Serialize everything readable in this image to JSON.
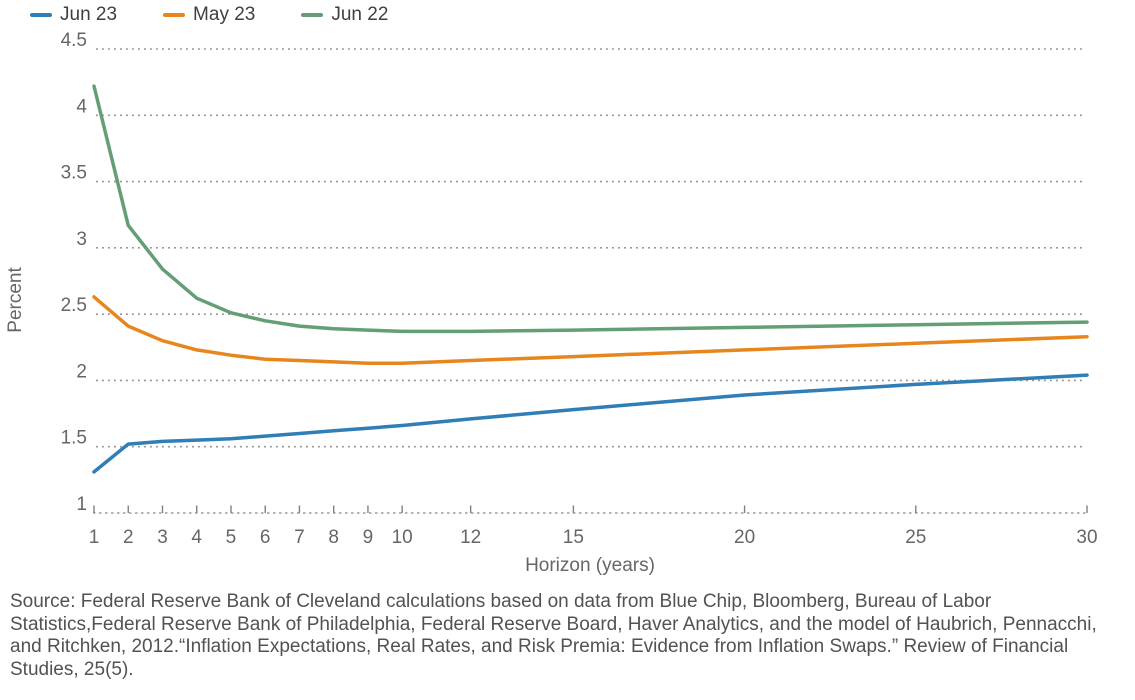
{
  "chart_data": {
    "type": "line",
    "x": [
      1,
      2,
      3,
      4,
      5,
      6,
      7,
      8,
      9,
      10,
      12,
      15,
      20,
      25,
      30
    ],
    "series": [
      {
        "name": "Jun 23",
        "color": "#2f7eb5",
        "values": [
          1.31,
          1.52,
          1.54,
          1.55,
          1.56,
          1.58,
          1.6,
          1.62,
          1.64,
          1.66,
          1.71,
          1.78,
          1.89,
          1.97,
          2.04
        ]
      },
      {
        "name": "May 23",
        "color": "#e8861e",
        "values": [
          2.63,
          2.41,
          2.3,
          2.23,
          2.19,
          2.16,
          2.15,
          2.14,
          2.13,
          2.13,
          2.15,
          2.18,
          2.23,
          2.28,
          2.33
        ]
      },
      {
        "name": "Jun 22",
        "color": "#639e74",
        "values": [
          4.22,
          3.17,
          2.84,
          2.62,
          2.51,
          2.45,
          2.41,
          2.39,
          2.38,
          2.37,
          2.37,
          2.38,
          2.4,
          2.42,
          2.44
        ]
      }
    ],
    "xlabel": "Horizon (years)",
    "ylabel": "Percent",
    "xticks": [
      1,
      2,
      3,
      4,
      5,
      6,
      7,
      8,
      9,
      10,
      12,
      15,
      20,
      25,
      30
    ],
    "yticks": [
      1,
      1.5,
      2,
      2.5,
      3,
      3.5,
      4,
      4.5
    ],
    "xlim": [
      1,
      30
    ],
    "ylim": [
      1,
      4.5
    ],
    "grid": "horizontal-dotted",
    "legend_position": "top-left",
    "grid_color": "#8f8f8f",
    "baseline_color": "#9b9b9b",
    "tick_color": "#808080",
    "line_width": 3.5
  },
  "legend": {
    "items": [
      {
        "label": "Jun 23",
        "color": "#2f7eb5"
      },
      {
        "label": "May 23",
        "color": "#e8861e"
      },
      {
        "label": "Jun 22",
        "color": "#639e74"
      }
    ]
  },
  "source": {
    "lines": [
      "Source: Federal Reserve Bank of Cleveland calculations based on data from Blue Chip, Bloomberg, Bureau of Labor",
      "Statistics,Federal Reserve Bank of Philadelphia, Federal Reserve Board, Haver Analytics, and the model of Haubrich, Pennacchi,",
      "and Ritchken, 2012.“Inflation Expectations, Real Rates, and Risk Premia: Evidence from Inflation Swaps.” Review of Financial",
      "Studies, 25(5)."
    ]
  }
}
